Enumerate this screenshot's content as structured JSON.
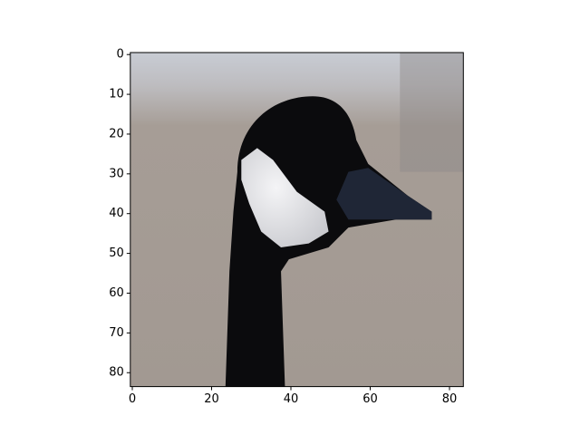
{
  "chart_data": {
    "type": "image",
    "xlim": [
      -0.5,
      83.5
    ],
    "ylim": [
      83.5,
      -0.5
    ],
    "xticks": [
      0,
      20,
      40,
      60,
      80
    ],
    "yticks": [
      0,
      10,
      20,
      30,
      40,
      50,
      60,
      70,
      80
    ]
  }
}
